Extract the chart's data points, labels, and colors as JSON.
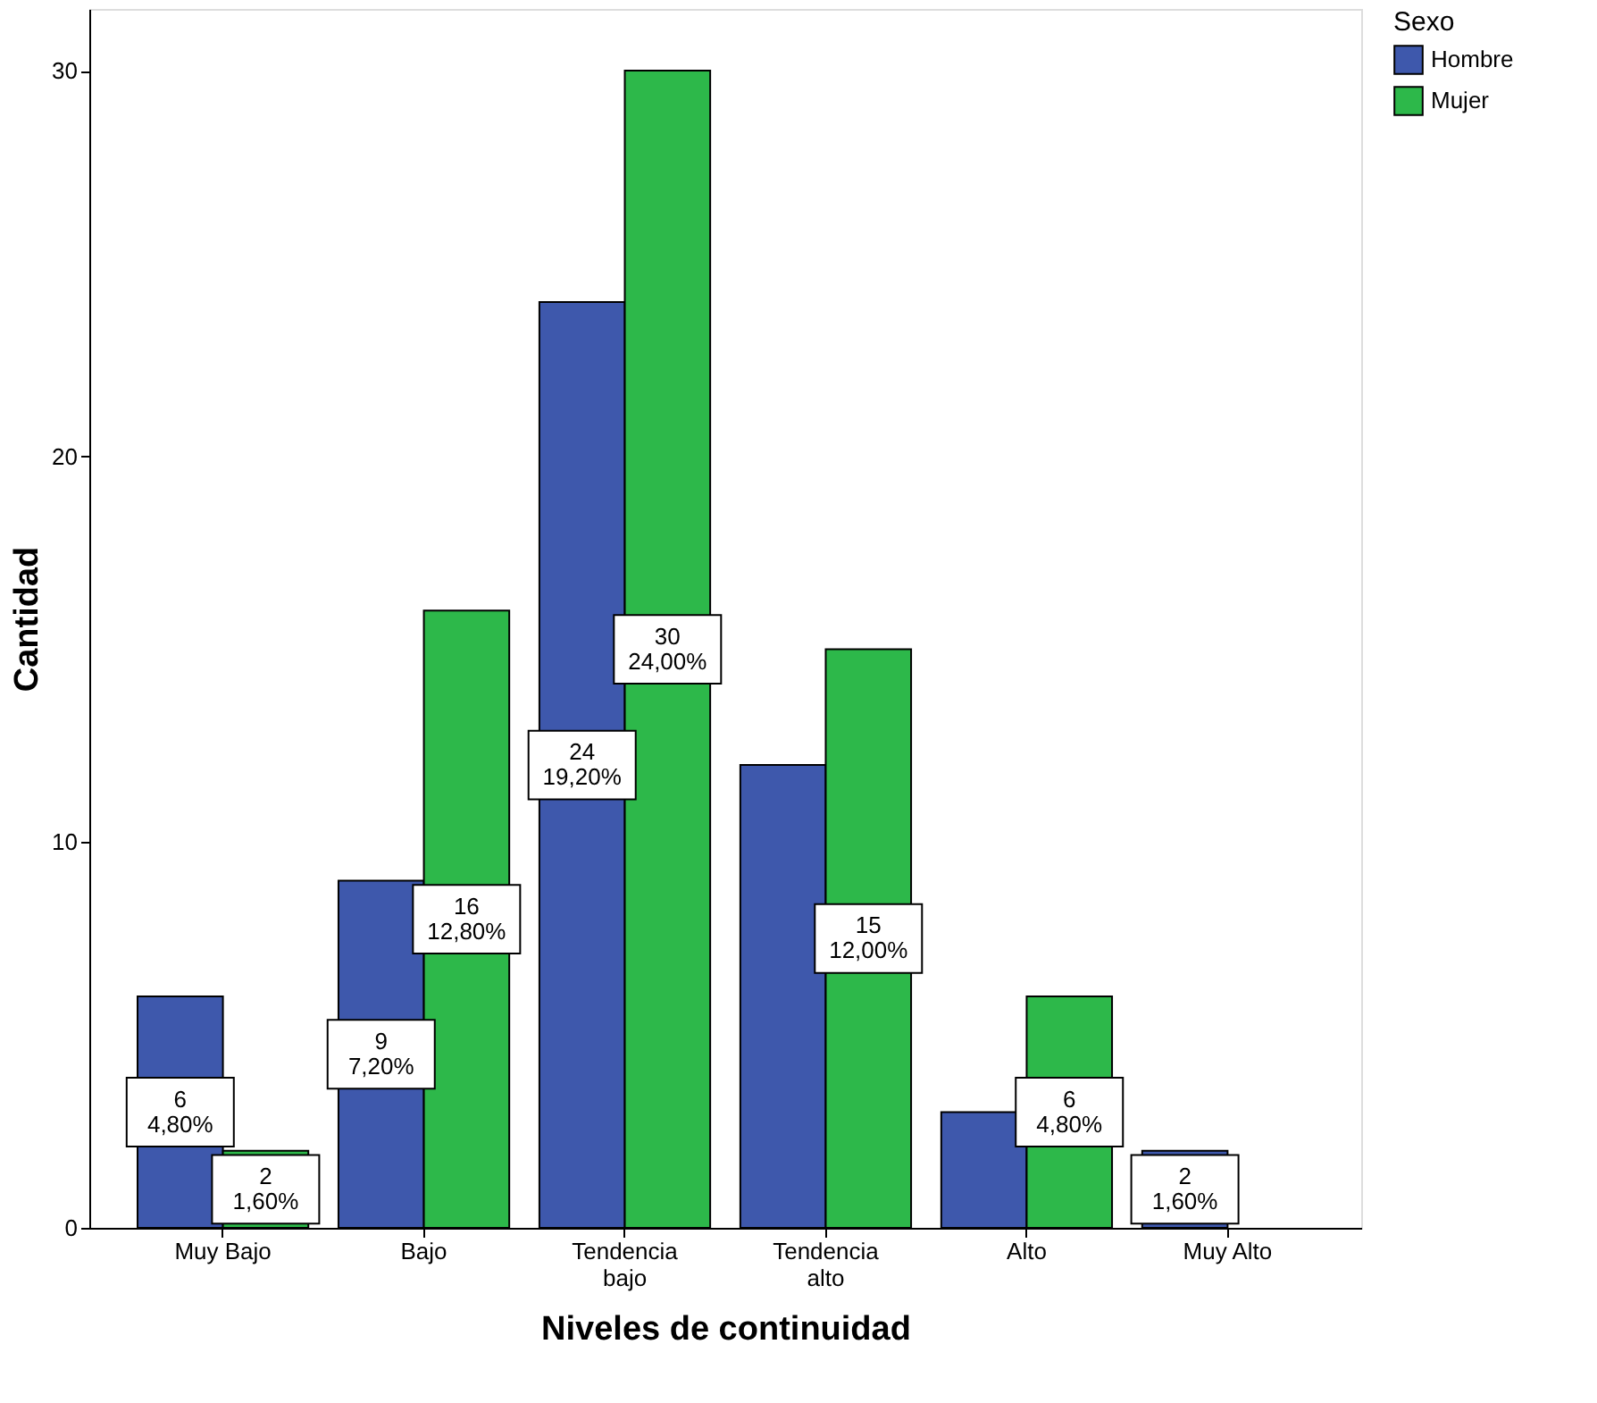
{
  "chart_data": {
    "type": "bar",
    "xlabel": "Niveles de continuidad",
    "ylabel": "Cantidad",
    "legend_title": "Sexo",
    "categories": [
      "Muy Bajo",
      "Bajo",
      "Tendencia bajo",
      "Tendencia alto",
      "Alto",
      "Muy Alto"
    ],
    "series": [
      {
        "name": "Hombre",
        "color": "#3e58ac",
        "values": [
          6,
          9,
          24,
          12,
          3,
          2
        ],
        "value_labels": [
          "6\n4,80%",
          "9\n7,20%",
          "24\n19,20%",
          null,
          null,
          "2\n1,60%"
        ]
      },
      {
        "name": "Mujer",
        "color": "#2db84a",
        "values": [
          2,
          16,
          30,
          15,
          6,
          null
        ],
        "value_labels": [
          "2\n1,60%",
          "16\n12,80%",
          "30\n24,00%",
          "15\n12,00%",
          "6\n4,80%",
          null
        ]
      }
    ],
    "ylim": [
      0,
      31.6
    ],
    "yticks": [
      0,
      10,
      20,
      30
    ],
    "grid": false,
    "legend": "top right"
  }
}
